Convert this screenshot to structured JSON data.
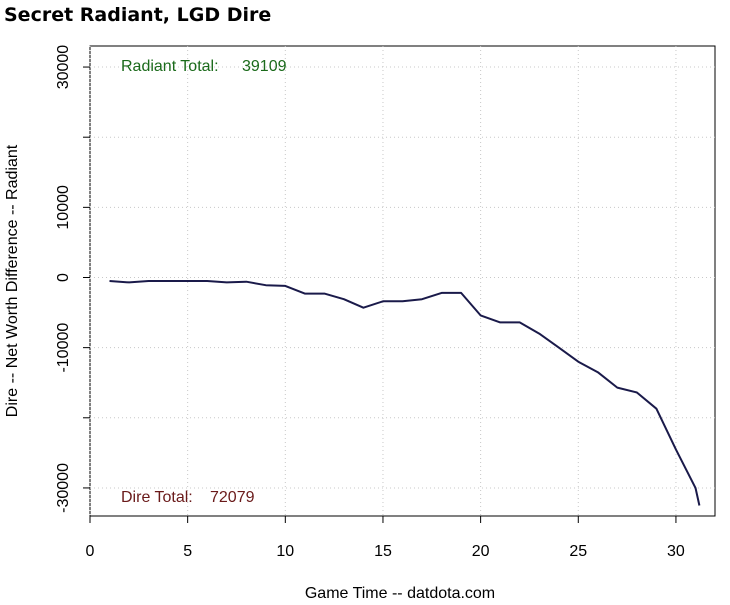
{
  "chart_data": {
    "type": "line",
    "title": "Secret Radiant, LGD Dire",
    "xlabel": "Game Time -- datdota.com",
    "ylabel": "Dire -- Net Worth Difference -- Radiant",
    "xlim": [
      0,
      32
    ],
    "ylim": [
      -34000,
      33000
    ],
    "x_ticks": [
      0,
      5,
      10,
      15,
      20,
      25,
      30
    ],
    "y_ticks": [
      30000,
      20000,
      10000,
      0,
      -10000,
      -20000,
      -30000
    ],
    "y_tick_labels": [
      {
        "value": 30000,
        "label": "30000"
      },
      {
        "value": 10000,
        "label": "10000"
      },
      {
        "value": 0,
        "label": "0"
      },
      {
        "value": -10000,
        "label": "-10000"
      },
      {
        "value": -30000,
        "label": "-30000"
      }
    ],
    "grid": true,
    "series": [
      {
        "color": "#1a1a4a",
        "x": [
          1,
          2,
          3,
          4,
          5,
          6,
          7,
          8,
          9,
          10,
          11,
          12,
          13,
          14,
          15,
          16,
          17,
          18,
          19,
          20,
          21,
          22,
          23,
          24,
          25,
          26,
          27,
          28,
          29,
          30,
          31,
          31.2
        ],
        "y": [
          -500,
          -700,
          -500,
          -500,
          -500,
          -500,
          -700,
          -600,
          -1100,
          -1200,
          -2300,
          -2300,
          -3100,
          -4300,
          -3400,
          -3400,
          -3100,
          -2200,
          -2200,
          -5400,
          -6400,
          -6400,
          -8000,
          -10000,
          -12000,
          -13500,
          -15700,
          -16400,
          -18700,
          -24500,
          -30000,
          -32500
        ]
      }
    ],
    "annotations": [
      {
        "label": "Radiant Total:",
        "value": "39109",
        "color": "#1a6a1a"
      },
      {
        "label": "Dire Total:",
        "value": "72079",
        "color": "#6a1a1a"
      }
    ]
  }
}
